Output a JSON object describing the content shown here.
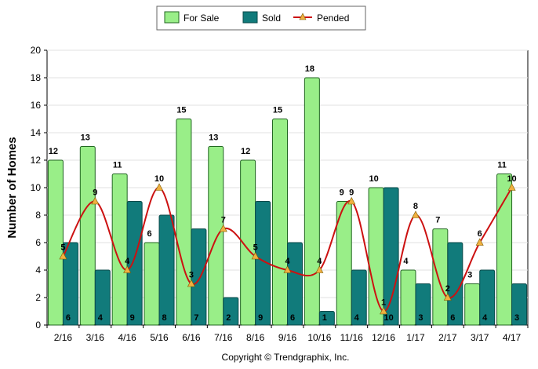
{
  "colors": {
    "for_sale": "#99ee88",
    "for_sale_stroke": "#226622",
    "sold": "#117b7b",
    "sold_stroke": "#0a4a4a",
    "pended": "#cc1111",
    "pended_marker": "#f0b040"
  },
  "copyright": "Copyright © Trendgraphix, Inc.",
  "chart_data": {
    "type": "bar",
    "ylabel": "Number of Homes",
    "ylim": [
      0,
      20
    ],
    "yticks": [
      0,
      2,
      4,
      6,
      8,
      10,
      12,
      14,
      16,
      18,
      20
    ],
    "legend_position": "top-center",
    "categories": [
      "2/16",
      "3/16",
      "4/16",
      "5/16",
      "6/16",
      "7/16",
      "8/16",
      "9/16",
      "10/16",
      "11/16",
      "12/16",
      "1/17",
      "2/17",
      "3/17",
      "4/17"
    ],
    "series": [
      {
        "name": "For Sale",
        "type": "bar",
        "values": [
          12,
          13,
          11,
          6,
          15,
          13,
          12,
          15,
          18,
          9,
          10,
          4,
          7,
          3,
          11
        ]
      },
      {
        "name": "Sold",
        "type": "bar",
        "values": [
          6,
          4,
          9,
          8,
          7,
          2,
          9,
          6,
          1,
          4,
          10,
          3,
          6,
          4,
          3
        ]
      },
      {
        "name": "Pended",
        "type": "line",
        "values": [
          5,
          9,
          4,
          10,
          3,
          7,
          5,
          4,
          4,
          9,
          1,
          8,
          2,
          6,
          10
        ]
      }
    ]
  }
}
